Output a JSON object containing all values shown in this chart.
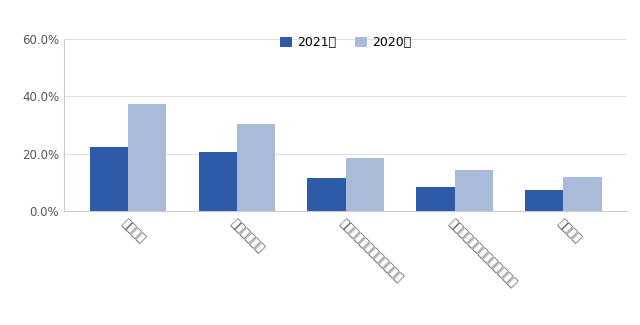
{
  "categories": [
    "視聴時間",
    "個別課金利用",
    "視聴コンテンツのジャンル",
    "視聴しているデバイスの種類",
    "利用金額"
  ],
  "values_2021": [
    22.5,
    20.5,
    11.5,
    8.5,
    7.5
  ],
  "values_2020": [
    37.5,
    30.5,
    18.5,
    14.5,
    12.0
  ],
  "color_2021": "#2E5BA8",
  "color_2020": "#AABBD9",
  "legend_2021": "2021年",
  "legend_2020": "2020年",
  "ylim": [
    0,
    60
  ],
  "yticks": [
    0,
    20,
    40,
    60
  ],
  "ytick_labels": [
    "0.0%",
    "20.0%",
    "40.0%",
    "60.0%"
  ],
  "bar_width": 0.35,
  "background_color": "#ffffff",
  "figsize": [
    6.4,
    3.25
  ],
  "dpi": 100,
  "tick_labelsize": 8.5,
  "legend_fontsize": 9
}
